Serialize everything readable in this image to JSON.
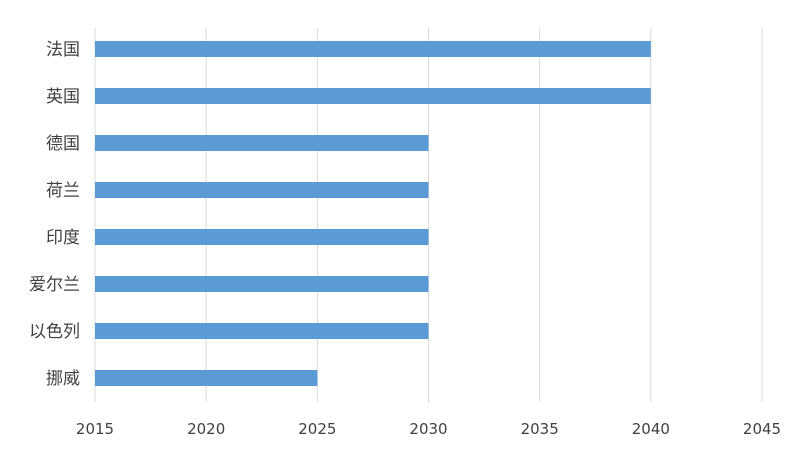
{
  "chart_data": {
    "type": "bar",
    "orientation": "horizontal",
    "title": "",
    "xlabel": "",
    "ylabel": "",
    "categories": [
      "法国",
      "英国",
      "德国",
      "荷兰",
      "印度",
      "爱尔兰",
      "以色列",
      "挪威"
    ],
    "values": [
      2040,
      2040,
      2030,
      2030,
      2030,
      2030,
      2030,
      2025
    ],
    "xlim": [
      2015,
      2045
    ],
    "xticks": [
      "2015",
      "2020",
      "2025",
      "2030",
      "2035",
      "2040",
      "2045"
    ],
    "grid": "vertical",
    "legend": "none",
    "colors": {
      "bar": "#5B9BD5",
      "grid": "#D9D9D9",
      "text": "#404040"
    }
  }
}
